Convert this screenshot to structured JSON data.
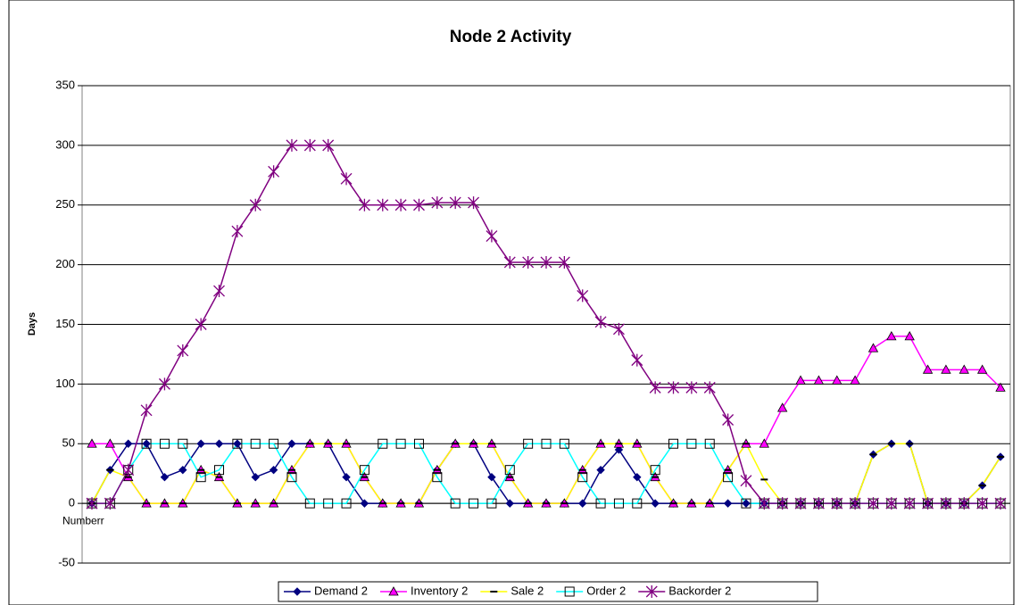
{
  "chart_data": {
    "type": "line",
    "title": "Node 2 Activity",
    "y_label": "Days",
    "x_label": "Numberr",
    "categories": [
      null,
      null,
      null,
      null,
      null,
      null,
      null,
      null,
      null,
      null,
      null,
      null,
      null,
      null,
      null,
      null,
      null,
      null,
      null,
      null,
      null,
      null,
      null,
      null,
      null,
      null,
      null,
      null,
      null,
      null,
      null,
      null,
      null,
      null,
      null,
      null,
      null,
      null,
      null,
      null,
      null,
      null,
      null,
      null,
      null,
      null,
      null,
      null,
      null,
      null,
      null
    ],
    "ylim": [
      -50,
      350
    ],
    "yticks": [
      -50,
      0,
      50,
      100,
      150,
      200,
      250,
      300,
      350
    ],
    "grid": true,
    "legend": "bottom",
    "series": [
      {
        "name": "Demand 2",
        "color": "#000080",
        "marker": "diamond",
        "values": [
          0,
          28,
          50,
          50,
          22,
          28,
          50,
          50,
          50,
          22,
          28,
          50,
          50,
          50,
          22,
          0,
          0,
          0,
          0,
          28,
          50,
          50,
          22,
          0,
          0,
          0,
          0,
          0,
          28,
          45,
          22,
          0,
          0,
          0,
          0,
          0,
          0,
          0,
          0,
          0,
          0,
          0,
          0,
          41,
          50,
          50,
          0,
          0,
          0,
          15,
          39
        ]
      },
      {
        "name": "Inventory 2",
        "color": "#ff00ff",
        "marker": "triangle",
        "values": [
          50,
          50,
          22,
          0,
          0,
          0,
          28,
          22,
          0,
          0,
          0,
          28,
          50,
          50,
          50,
          22,
          0,
          0,
          0,
          28,
          50,
          50,
          50,
          22,
          0,
          0,
          0,
          28,
          50,
          50,
          50,
          22,
          0,
          0,
          0,
          28,
          50,
          50,
          80,
          103,
          103,
          103,
          103,
          130,
          140,
          140,
          112,
          112,
          112,
          112,
          97
        ]
      },
      {
        "name": "Sale 2",
        "color": "#ffff00",
        "marker": "dash",
        "values": [
          0,
          28,
          22,
          0,
          0,
          0,
          28,
          22,
          0,
          0,
          0,
          28,
          50,
          50,
          50,
          22,
          0,
          0,
          0,
          28,
          50,
          50,
          50,
          22,
          0,
          0,
          0,
          28,
          50,
          50,
          50,
          22,
          0,
          0,
          0,
          28,
          50,
          20,
          0,
          0,
          0,
          0,
          0,
          41,
          50,
          50,
          0,
          0,
          0,
          15,
          39
        ]
      },
      {
        "name": "Order 2",
        "color": "#00ffff",
        "marker": "square",
        "values": [
          0,
          0,
          28,
          50,
          50,
          50,
          22,
          28,
          50,
          50,
          50,
          22,
          0,
          0,
          0,
          28,
          50,
          50,
          50,
          22,
          0,
          0,
          0,
          28,
          50,
          50,
          50,
          22,
          0,
          0,
          0,
          28,
          50,
          50,
          50,
          22,
          0,
          0,
          0,
          0,
          0,
          0,
          0,
          0,
          0,
          0,
          0,
          0,
          0,
          0,
          0
        ]
      },
      {
        "name": "Backorder 2",
        "color": "#800080",
        "marker": "asterisk",
        "values": [
          0,
          0,
          28,
          78,
          100,
          128,
          150,
          178,
          228,
          250,
          278,
          300,
          300,
          300,
          272,
          250,
          250,
          250,
          250,
          252,
          252,
          252,
          224,
          202,
          202,
          202,
          202,
          174,
          152,
          146,
          120,
          97,
          97,
          97,
          97,
          70,
          19,
          0,
          0,
          0,
          0,
          0,
          0,
          0,
          0,
          0,
          0,
          0,
          0,
          0,
          0
        ]
      }
    ]
  }
}
